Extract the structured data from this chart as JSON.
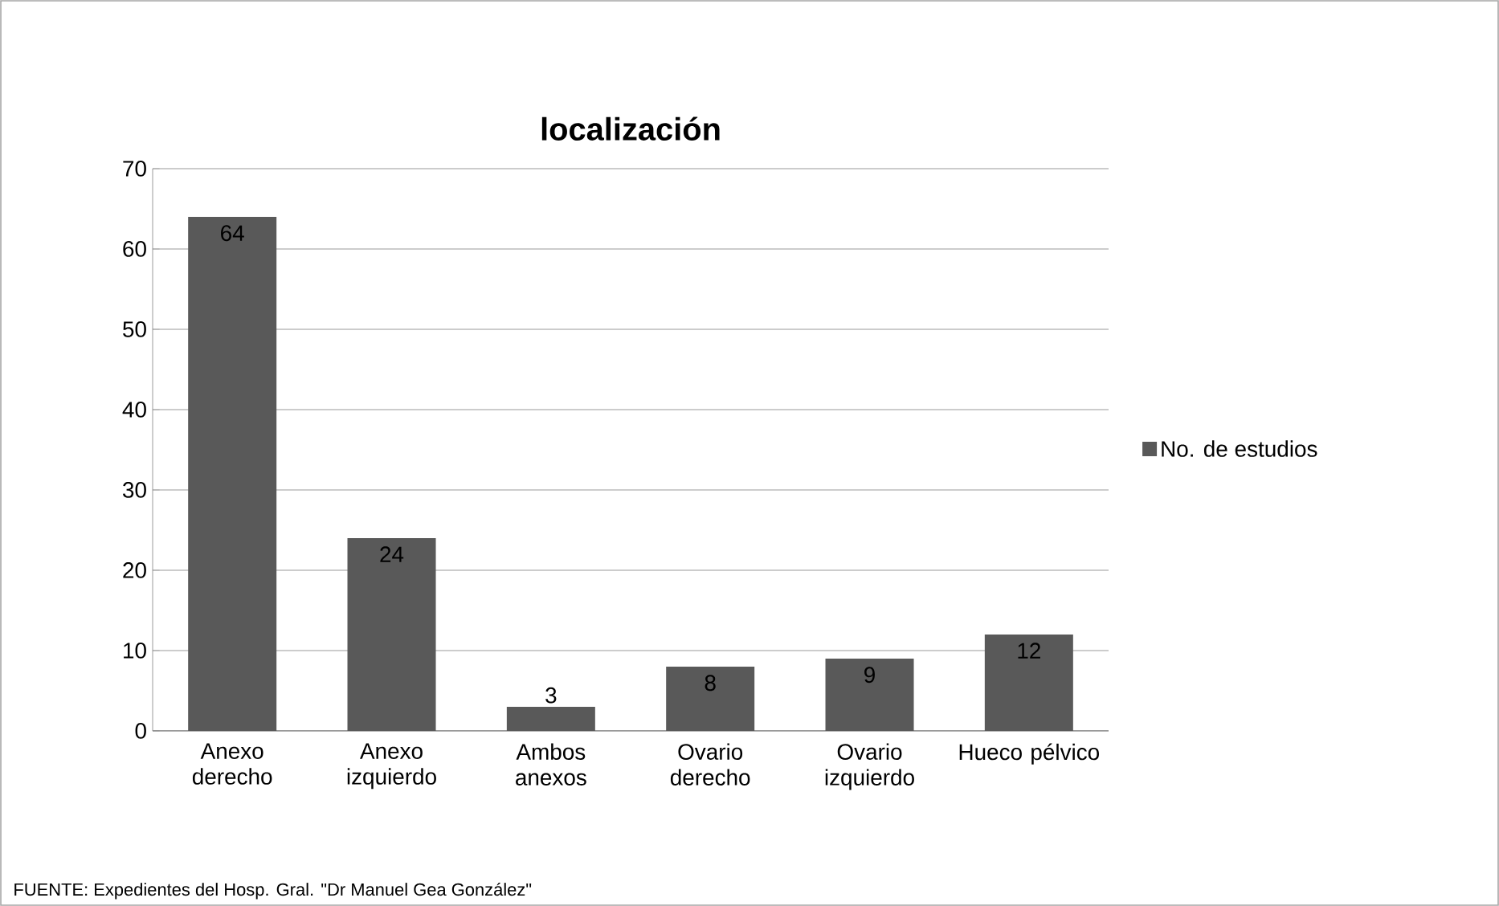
{
  "chart_data": {
    "type": "bar",
    "title": "localización",
    "categories": [
      "Anexo derecho",
      "Anexo izquierdo",
      "Ambos anexos",
      "Ovario derecho",
      "Ovario izquierdo",
      "Hueco pélvico"
    ],
    "series": [
      {
        "name": "No. de estudios",
        "color": "#595959",
        "values": [
          64,
          24,
          3,
          8,
          9,
          12
        ]
      }
    ],
    "ylim": [
      0,
      70
    ],
    "yticks": [
      0,
      10,
      20,
      30,
      40,
      50,
      60,
      70
    ],
    "grid": "y",
    "legend": "right",
    "data_labels": true,
    "annotations": [
      "FUENTE:  Expedientes del Hosp. Gral. \"Dr Manuel Gea González\""
    ]
  }
}
